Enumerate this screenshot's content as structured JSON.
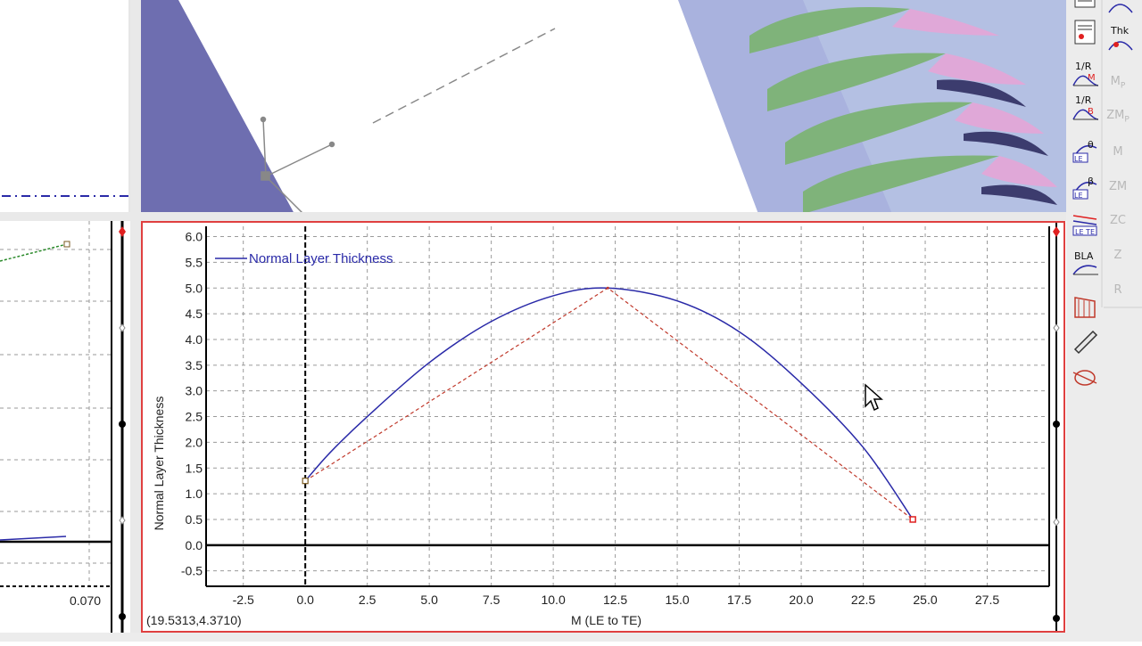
{
  "main_chart": {
    "legend_label": "Normal Layer Thickness",
    "ylabel": "Normal Layer Thickness",
    "xlabel": "M (LE to TE)",
    "coordinate_readout": "(19.5313,4.3710)",
    "x_ticks": [
      "-2.5",
      "0.0",
      "2.5",
      "5.0",
      "7.5",
      "10.0",
      "12.5",
      "15.0",
      "17.5",
      "20.0",
      "22.5",
      "25.0",
      "27.5"
    ],
    "y_ticks": [
      "6.0",
      "5.5",
      "5.0",
      "4.5",
      "4.0",
      "3.5",
      "3.0",
      "2.5",
      "2.0",
      "1.5",
      "1.0",
      "0.5",
      "0.0",
      "-0.5"
    ],
    "colors": {
      "curve": "#2a2aa8",
      "control": "#c0392b",
      "border": "#e04040",
      "grid": "#9a9a9a"
    }
  },
  "chart_data": {
    "type": "line",
    "title": "",
    "xlabel": "M (LE to TE)",
    "ylabel": "Normal Layer Thickness",
    "xlim": [
      -4,
      30
    ],
    "ylim": [
      -0.8,
      6.2
    ],
    "grid": true,
    "legend": "top-left",
    "series": [
      {
        "name": "Normal Layer Thickness",
        "x": [
          0.0,
          1.0,
          2.5,
          5.0,
          7.5,
          10.0,
          12.2,
          15.0,
          17.5,
          20.0,
          22.5,
          24.5
        ],
        "y": [
          1.25,
          1.8,
          2.5,
          3.55,
          4.35,
          4.85,
          5.0,
          4.75,
          4.15,
          3.15,
          1.9,
          0.5
        ]
      },
      {
        "name": "",
        "x": [
          0.0,
          12.2,
          24.5
        ],
        "y": [
          1.25,
          5.0,
          0.5
        ]
      }
    ]
  },
  "left_chart": {
    "x_tick": "0.070"
  },
  "toolbar": {
    "col1": [
      "Thk",
      "1/R M",
      "1/R B",
      "LE θ",
      "LE β",
      "LE TE",
      "BLA",
      "",
      "",
      ""
    ],
    "col2": [
      "Thk",
      "Thk",
      "Mp",
      "ZMp",
      "M",
      "ZM",
      "ZC",
      "Z",
      "R"
    ]
  }
}
